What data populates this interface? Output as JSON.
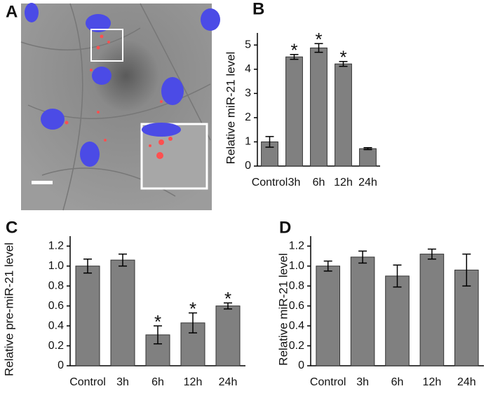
{
  "image_panel": {
    "label": "A"
  },
  "chart_data": [
    {
      "type": "bar",
      "panel_label": "B",
      "y_label": "Relative miR-21 level",
      "categories": [
        "Control",
        "3h",
        "6h",
        "12h",
        "24h"
      ],
      "values": [
        1.0,
        4.51,
        4.88,
        4.22,
        0.72
      ],
      "errors": [
        0.22,
        0.1,
        0.18,
        0.1,
        0.04
      ],
      "value_annotations": [
        null,
        "*",
        "*",
        "*",
        null
      ],
      "color": "#808080",
      "ylim": [
        0,
        5.5
      ],
      "yticks": [
        0,
        1,
        2,
        3,
        4,
        5
      ]
    },
    {
      "type": "bar",
      "panel_label": "C",
      "y_label": "Relative pre-miR-21 level",
      "categories": [
        "Control",
        "3h",
        "6h",
        "12h",
        "24h"
      ],
      "values": [
        1.0,
        1.06,
        0.31,
        0.43,
        0.6
      ],
      "errors": [
        0.07,
        0.06,
        0.09,
        0.1,
        0.03
      ],
      "value_annotations": [
        null,
        null,
        "*",
        "*",
        "*"
      ],
      "color": "#808080",
      "ylim": [
        0,
        1.3
      ],
      "yticks": [
        0,
        0.2,
        0.4,
        0.6,
        0.8,
        {
          "value": 1,
          "label": "1.0"
        },
        1.2
      ]
    },
    {
      "type": "bar",
      "panel_label": "D",
      "y_label": "Relative miR-21 level",
      "categories": [
        "Control",
        "3h",
        "6h",
        "12h",
        "24h"
      ],
      "values": [
        1.0,
        1.09,
        0.9,
        1.12,
        0.96
      ],
      "errors": [
        0.05,
        0.06,
        0.11,
        0.05,
        0.16
      ],
      "value_annotations": [
        null,
        null,
        null,
        null,
        null
      ],
      "color": "#808080",
      "ylim": [
        0,
        1.3
      ],
      "yticks": [
        0,
        0.2,
        0.4,
        0.6,
        0.8,
        {
          "value": 1,
          "label": "1.0"
        },
        1.2
      ]
    }
  ]
}
